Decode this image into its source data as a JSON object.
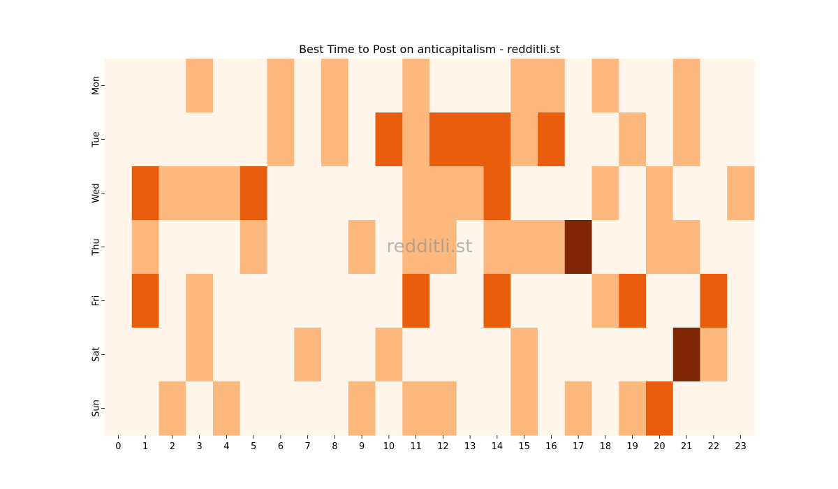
{
  "chart_data": {
    "type": "heatmap",
    "title": "Best Time to Post on anticapitalism - redditli.st",
    "watermark": "redditli.st",
    "x_categories": [
      "0",
      "1",
      "2",
      "3",
      "4",
      "5",
      "6",
      "7",
      "8",
      "9",
      "10",
      "11",
      "12",
      "13",
      "14",
      "15",
      "16",
      "17",
      "18",
      "19",
      "20",
      "21",
      "22",
      "23"
    ],
    "y_categories": [
      "Mon",
      "Tue",
      "Wed",
      "Thu",
      "Fri",
      "Sat",
      "Sun"
    ],
    "levels": [
      0,
      1,
      2,
      3
    ],
    "colors": [
      "#fff5eb",
      "#fdb97d",
      "#e95e0d",
      "#7f2704"
    ],
    "values": [
      [
        0,
        0,
        0,
        1,
        0,
        0,
        1,
        0,
        1,
        0,
        0,
        1,
        0,
        0,
        0,
        1,
        1,
        0,
        1,
        0,
        0,
        1,
        0,
        0
      ],
      [
        0,
        0,
        0,
        0,
        0,
        0,
        1,
        0,
        1,
        0,
        2,
        1,
        2,
        2,
        2,
        1,
        2,
        0,
        0,
        1,
        0,
        1,
        0,
        0
      ],
      [
        0,
        2,
        1,
        1,
        1,
        2,
        0,
        0,
        0,
        0,
        0,
        1,
        1,
        1,
        2,
        0,
        0,
        0,
        1,
        0,
        1,
        0,
        0,
        1
      ],
      [
        0,
        1,
        0,
        0,
        0,
        1,
        0,
        0,
        0,
        1,
        0,
        1,
        1,
        0,
        1,
        1,
        1,
        3,
        0,
        0,
        1,
        1,
        0,
        0
      ],
      [
        0,
        2,
        0,
        1,
        0,
        0,
        0,
        0,
        0,
        0,
        0,
        2,
        0,
        0,
        2,
        0,
        0,
        0,
        1,
        2,
        0,
        0,
        2,
        0
      ],
      [
        0,
        0,
        0,
        1,
        0,
        0,
        0,
        1,
        0,
        0,
        1,
        0,
        0,
        0,
        0,
        1,
        0,
        0,
        0,
        0,
        0,
        3,
        1,
        0
      ],
      [
        0,
        0,
        1,
        0,
        1,
        0,
        0,
        0,
        0,
        1,
        0,
        1,
        1,
        0,
        0,
        1,
        0,
        1,
        0,
        1,
        2,
        0,
        0,
        0
      ]
    ]
  }
}
